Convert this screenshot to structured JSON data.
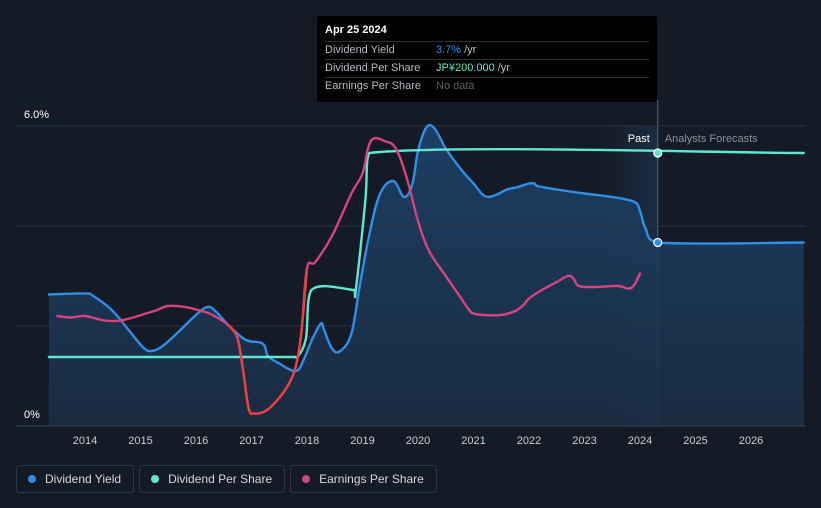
{
  "tooltip": {
    "date": "Apr 25 2024",
    "rows": [
      {
        "label": "Dividend Yield",
        "value": "3.7%",
        "unit": "/yr"
      },
      {
        "label": "Dividend Per Share",
        "value": "JP¥200.000",
        "unit": "/yr"
      },
      {
        "label": "Earnings Per Share",
        "value": "No data",
        "unit": ""
      }
    ]
  },
  "regions": {
    "past_label": "Past",
    "forecast_label": "Analysts Forecasts"
  },
  "legend": [
    {
      "label": "Dividend Yield",
      "color": "#2f8fe8"
    },
    {
      "label": "Dividend Per Share",
      "color": "#5ee8d2"
    },
    {
      "label": "Earnings Per Share",
      "color": "#d6447f"
    }
  ],
  "chart_data": {
    "type": "line",
    "title": "",
    "xlabel": "",
    "ylabel": "",
    "ylim": [
      0,
      6.0
    ],
    "xlim": [
      2013.3,
      2026.95
    ],
    "y_tick_labels": [
      "6.0%",
      "0%"
    ],
    "x_ticks": [
      2014,
      2015,
      2016,
      2017,
      2018,
      2019,
      2020,
      2021,
      2022,
      2023,
      2024,
      2025,
      2026
    ],
    "past_end": 2024.32,
    "forecast_start": 2023.3,
    "series": [
      {
        "name": "Dividend Yield",
        "color": "#2f8fe8",
        "x": [
          2013.35,
          2014.0,
          2014.15,
          2014.5,
          2014.8,
          2015.05,
          2015.2,
          2015.4,
          2015.7,
          2016.0,
          2016.2,
          2016.35,
          2016.6,
          2016.9,
          2017.2,
          2017.3,
          2017.5,
          2017.8,
          2017.95,
          2018.1,
          2018.25,
          2018.3,
          2018.45,
          2018.6,
          2018.8,
          2018.95,
          2019.1,
          2019.3,
          2019.55,
          2019.75,
          2019.9,
          2020.0,
          2020.15,
          2020.3,
          2020.5,
          2020.8,
          2021.0,
          2021.2,
          2021.4,
          2021.6,
          2021.8,
          2022.0,
          2022.1,
          2022.15,
          2022.5,
          2023.0,
          2023.5,
          2023.9,
          2024.0,
          2024.1,
          2024.32,
          2026.95
        ],
        "values": [
          2.63,
          2.65,
          2.6,
          2.3,
          1.9,
          1.57,
          1.5,
          1.6,
          1.9,
          2.22,
          2.38,
          2.3,
          2.0,
          1.72,
          1.65,
          1.4,
          1.25,
          1.1,
          1.35,
          1.75,
          2.05,
          1.95,
          1.55,
          1.5,
          1.85,
          2.8,
          3.7,
          4.6,
          4.9,
          4.58,
          4.85,
          5.5,
          5.97,
          5.95,
          5.55,
          5.1,
          4.85,
          4.6,
          4.62,
          4.73,
          4.78,
          4.85,
          4.85,
          4.8,
          4.73,
          4.65,
          4.58,
          4.48,
          4.3,
          3.95,
          3.67,
          3.67
        ]
      },
      {
        "name": "Dividend Per Share",
        "color": "#5ee8d2",
        "x": [
          2013.35,
          2017.8,
          2017.83,
          2017.98,
          2018.08,
          2018.85,
          2018.88,
          2019.05,
          2019.12,
          2026.95
        ],
        "values": [
          1.38,
          1.38,
          1.38,
          1.75,
          2.72,
          2.72,
          2.72,
          4.5,
          5.46,
          5.46
        ]
      },
      {
        "name": "Earnings Per Share",
        "color": "#d6447f",
        "x": [
          2013.5,
          2013.75,
          2014.0,
          2014.3,
          2014.55,
          2014.8,
          2015.1,
          2015.3,
          2015.5,
          2015.8,
          2016.1,
          2016.3,
          2016.6,
          2016.75,
          2016.85,
          2016.95,
          2017.05,
          2017.25,
          2017.45,
          2017.65,
          2017.8,
          2017.9,
          2018.0,
          2018.15,
          2018.45,
          2018.8,
          2019.0,
          2019.1,
          2019.2,
          2019.4,
          2019.6,
          2019.8,
          2020.0,
          2020.2,
          2020.5,
          2020.75,
          2020.9,
          2021.0,
          2021.2,
          2021.5,
          2021.75,
          2021.9,
          2022.0,
          2022.2,
          2022.5,
          2022.7,
          2022.8,
          2022.9,
          2023.2,
          2023.6,
          2023.8,
          2023.9,
          2024.0
        ],
        "values": [
          2.2,
          2.17,
          2.2,
          2.12,
          2.1,
          2.15,
          2.25,
          2.32,
          2.4,
          2.38,
          2.3,
          2.22,
          2.0,
          1.75,
          1.1,
          0.35,
          0.25,
          0.3,
          0.5,
          0.8,
          1.2,
          1.9,
          3.15,
          3.28,
          3.8,
          4.65,
          5.05,
          5.55,
          5.75,
          5.7,
          5.55,
          4.95,
          4.1,
          3.5,
          3.0,
          2.6,
          2.35,
          2.25,
          2.22,
          2.22,
          2.3,
          2.42,
          2.55,
          2.7,
          2.88,
          3.0,
          2.95,
          2.8,
          2.78,
          2.8,
          2.75,
          2.83,
          3.05
        ]
      }
    ]
  }
}
